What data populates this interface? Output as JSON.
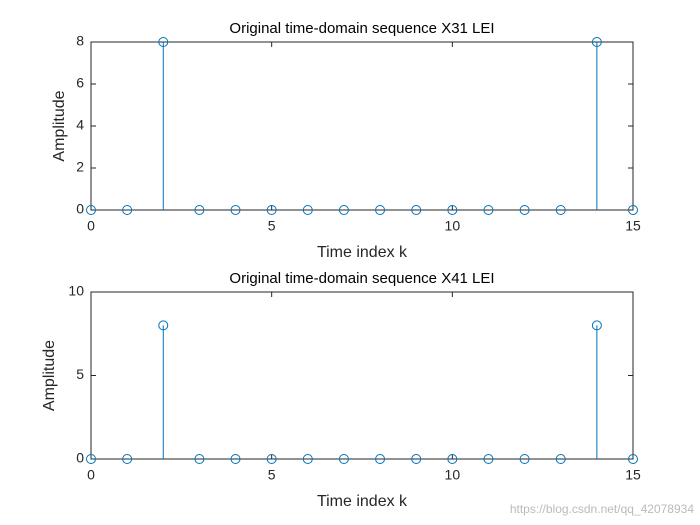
{
  "chart_data": [
    {
      "type": "stem",
      "title": "Original time-domain sequence X31 LEI",
      "xlabel": "Time index k",
      "ylabel": "Amplitude",
      "x": [
        0,
        1,
        2,
        3,
        4,
        5,
        6,
        7,
        8,
        9,
        10,
        11,
        12,
        13,
        14,
        15
      ],
      "values": [
        0,
        0,
        8,
        0,
        0,
        0,
        0,
        0,
        0,
        0,
        0,
        0,
        0,
        0,
        8,
        0
      ],
      "color": "#0072BD",
      "xlim": [
        0,
        15
      ],
      "xticks": [
        0,
        5,
        10,
        15
      ],
      "ylim": [
        0,
        8
      ],
      "yticks": [
        0,
        2,
        4,
        6,
        8
      ]
    },
    {
      "type": "stem",
      "title": "Original time-domain sequence X41 LEI",
      "xlabel": "Time index k",
      "ylabel": "Amplitude",
      "x": [
        0,
        1,
        2,
        3,
        4,
        5,
        6,
        7,
        8,
        9,
        10,
        11,
        12,
        13,
        14,
        15
      ],
      "values": [
        0,
        0,
        8,
        0,
        0,
        0,
        0,
        0,
        0,
        0,
        0,
        0,
        0,
        0,
        8,
        0
      ],
      "color": "#0072BD",
      "xlim": [
        0,
        15
      ],
      "xticks": [
        0,
        5,
        10,
        15
      ],
      "ylim": [
        0,
        10
      ],
      "yticks": [
        0,
        5,
        10
      ]
    }
  ],
  "watermark": "https://blog.csdn.net/qq_42078934"
}
